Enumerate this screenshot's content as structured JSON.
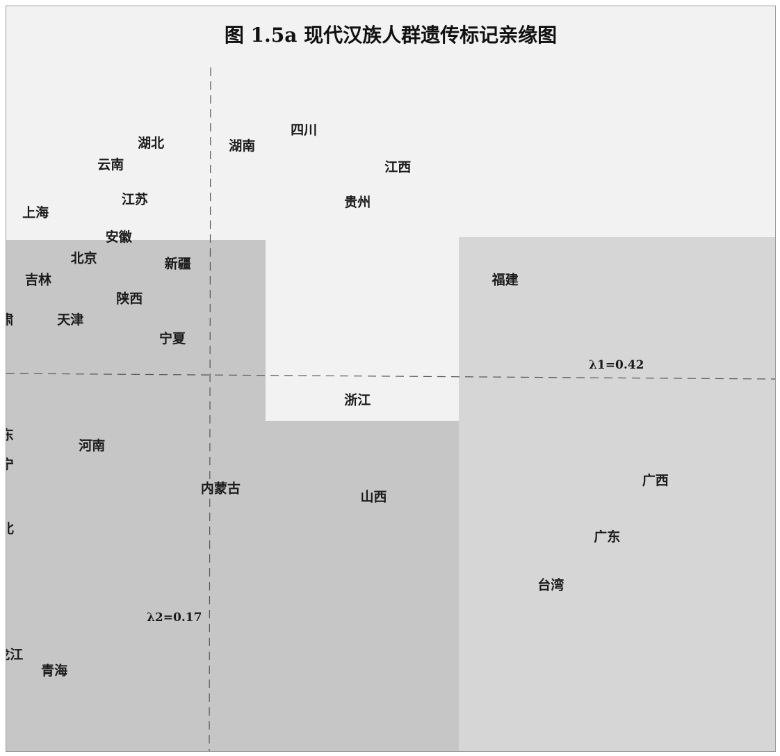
{
  "chart_data": {
    "type": "scatter",
    "title": "图 1.5a  现代汉族人群遗传标记亲缘图",
    "axes": {
      "x_label": "λ1=0.42",
      "y_label": "λ2=0.17"
    },
    "points": [
      {
        "label": "四川",
        "x": 0.35,
        "y": 0.92
      },
      {
        "label": "湖北",
        "x": -0.22,
        "y": 0.87
      },
      {
        "label": "湖南",
        "x": 0.12,
        "y": 0.86
      },
      {
        "label": "云南",
        "x": -0.37,
        "y": 0.79
      },
      {
        "label": "江西",
        "x": 0.7,
        "y": 0.78
      },
      {
        "label": "江苏",
        "x": -0.28,
        "y": 0.66
      },
      {
        "label": "贵州",
        "x": 0.55,
        "y": 0.65
      },
      {
        "label": "上海",
        "x": -0.65,
        "y": 0.61
      },
      {
        "label": "安徽",
        "x": -0.34,
        "y": 0.52
      },
      {
        "label": "北京",
        "x": -0.47,
        "y": 0.44
      },
      {
        "label": "新疆",
        "x": -0.12,
        "y": 0.42
      },
      {
        "label": "吉林",
        "x": -0.64,
        "y": 0.36
      },
      {
        "label": "福建",
        "x": 1.1,
        "y": 0.36
      },
      {
        "label": "陕西",
        "x": -0.3,
        "y": 0.29
      },
      {
        "label": "甘肃",
        "x": -0.78,
        "y": 0.21
      },
      {
        "label": "天津",
        "x": -0.52,
        "y": 0.21
      },
      {
        "label": "宁夏",
        "x": -0.14,
        "y": 0.14
      },
      {
        "label": "浙江",
        "x": 0.55,
        "y": -0.09
      },
      {
        "label": "山东",
        "x": -0.78,
        "y": -0.22
      },
      {
        "label": "河南",
        "x": -0.44,
        "y": -0.26
      },
      {
        "label": "辽宁",
        "x": -0.78,
        "y": -0.33
      },
      {
        "label": "内蒙古",
        "x": 0.04,
        "y": -0.42
      },
      {
        "label": "山西",
        "x": 0.61,
        "y": -0.45
      },
      {
        "label": "广西",
        "x": 1.66,
        "y": -0.39
      },
      {
        "label": "河北",
        "x": -0.78,
        "y": -0.57
      },
      {
        "label": "广东",
        "x": 1.48,
        "y": -0.6
      },
      {
        "label": "台湾",
        "x": 1.27,
        "y": -0.78
      },
      {
        "label": "黑龙江",
        "x": -0.77,
        "y": -1.04
      },
      {
        "label": "青海",
        "x": -0.58,
        "y": -1.1
      }
    ],
    "regions": [
      {
        "name": "north",
        "color": "#c6c6c6"
      },
      {
        "name": "south",
        "color": "#d6d6d6"
      }
    ],
    "grid": false,
    "legend": "none"
  }
}
